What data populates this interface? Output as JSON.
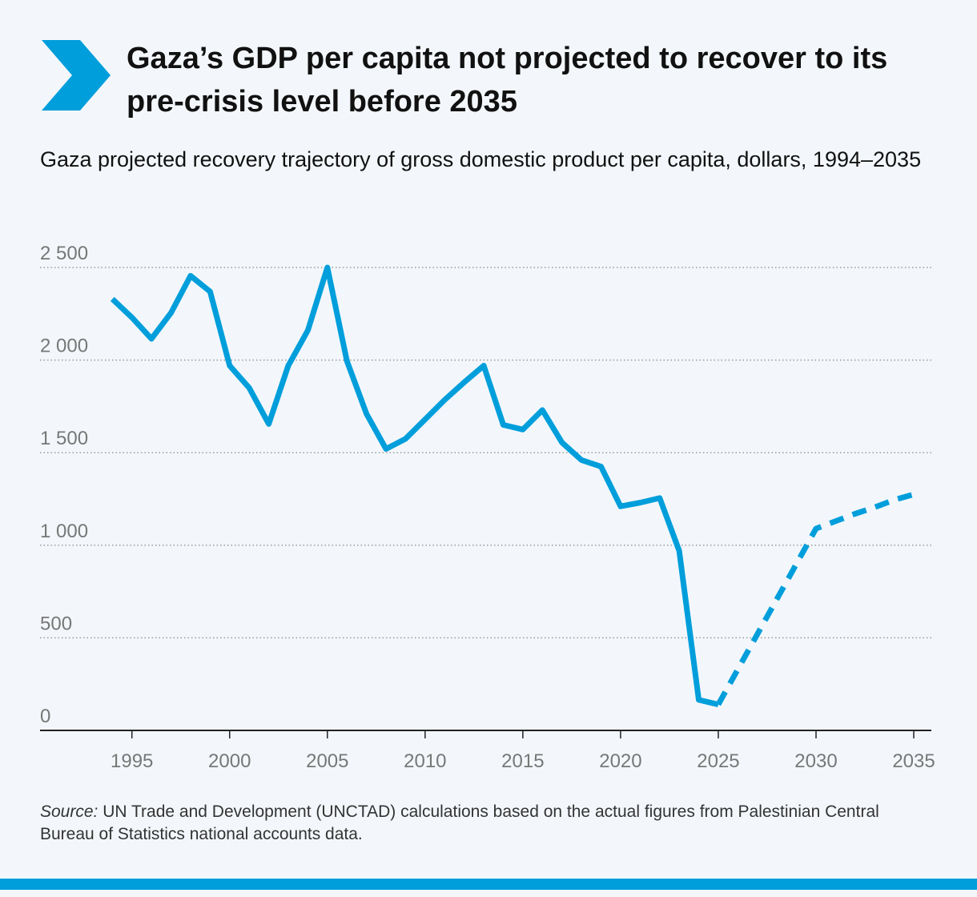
{
  "chart_data": {
    "type": "line",
    "title": "Gaza’s GDP per capita not projected to recover to its pre-crisis level before 2035",
    "subtitle": "Gaza projected recovery trajectory of gross domestic product per capita, dollars, 1994–2035",
    "source_label": "Source:",
    "source": "UN Trade and Development (UNCTAD) calculations based on the actual figures from Palestinian Central Bureau of Statistics national accounts data.",
    "x": [
      1994,
      1995,
      1996,
      1997,
      1998,
      1999,
      2000,
      2001,
      2002,
      2003,
      2004,
      2005,
      2006,
      2007,
      2008,
      2009,
      2010,
      2011,
      2012,
      2013,
      2014,
      2015,
      2016,
      2017,
      2018,
      2019,
      2020,
      2021,
      2022,
      2023,
      2024,
      2025,
      2026,
      2027,
      2028,
      2029,
      2030,
      2031,
      2032,
      2033,
      2034,
      2035
    ],
    "series": [
      {
        "color": "#009edb",
        "dashed": false,
        "values": [
          2330,
          2230,
          2115,
          2255,
          2455,
          2370,
          1970,
          1850,
          1655,
          1970,
          2160,
          2500,
          1995,
          1710,
          1520,
          1575,
          1680,
          1785,
          1880,
          1970,
          1650,
          1625,
          1730,
          1555,
          1460,
          1425,
          1210,
          1230,
          1255,
          970,
          165,
          140,
          null,
          null,
          null,
          null,
          null,
          null,
          null,
          null,
          null,
          null
        ]
      },
      {
        "color": "#009edb",
        "dashed": true,
        "values": [
          null,
          null,
          null,
          null,
          null,
          null,
          null,
          null,
          null,
          null,
          null,
          null,
          null,
          null,
          null,
          null,
          null,
          null,
          null,
          null,
          null,
          null,
          null,
          null,
          null,
          null,
          null,
          null,
          null,
          null,
          null,
          140,
          330,
          520,
          710,
          900,
          1090,
          1130,
          1170,
          1205,
          1245,
          1275
        ]
      }
    ],
    "xlim": [
      1990.3,
      2035.9
    ],
    "xticks": [
      1995,
      2000,
      2005,
      2010,
      2015,
      2020,
      2025,
      2030,
      2035
    ],
    "ylim": [
      0,
      2500
    ],
    "yticks": [
      0,
      500,
      {
        "value": 1000,
        "label": "1 000"
      },
      {
        "value": 1500,
        "label": "1 500"
      },
      {
        "value": 2000,
        "label": "2 000"
      },
      {
        "value": 2500,
        "label": "2 500"
      }
    ],
    "grid": true
  }
}
